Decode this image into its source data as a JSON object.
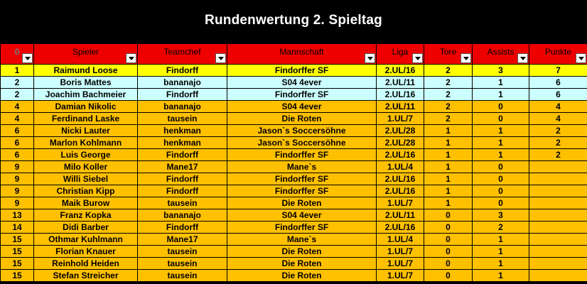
{
  "title": "Rundenwertung 2. Spieltag",
  "columns": [
    "0",
    "Spieler",
    "Teamchef",
    "Mannschaft",
    "Liga",
    "Tore",
    "Assists",
    "Punkte"
  ],
  "colors": {
    "header": "#ee0000",
    "highlight": "#ffff00",
    "cyan": "#ccffff",
    "orange": "#ffc000"
  },
  "rows": [
    {
      "rank": "1",
      "spieler": "Raimund Loose",
      "teamchef": "Findorff",
      "mannschaft": "Findorffer SF",
      "liga": "2.UL/16",
      "tore": "2",
      "assists": "3",
      "punkte": "7",
      "style": "first"
    },
    {
      "rank": "2",
      "spieler": "Boris Mattes",
      "teamchef": "bananajo",
      "mannschaft": "S04 4ever",
      "liga": "2.UL/11",
      "tore": "2",
      "assists": "1",
      "punkte": "6",
      "style": "cyan"
    },
    {
      "rank": "2",
      "spieler": "Joachim Bachmeier",
      "teamchef": "Findorff",
      "mannschaft": "Findorffer SF",
      "liga": "2.UL/16",
      "tore": "2",
      "assists": "1",
      "punkte": "6",
      "style": "cyan"
    },
    {
      "rank": "4",
      "spieler": "Damian Nikolic",
      "teamchef": "bananajo",
      "mannschaft": "S04 4ever",
      "liga": "2.UL/11",
      "tore": "2",
      "assists": "0",
      "punkte": "4",
      "style": "orange"
    },
    {
      "rank": "4",
      "spieler": "Ferdinand Laske",
      "teamchef": "tausein",
      "mannschaft": "Die Roten",
      "liga": "1.UL/7",
      "tore": "2",
      "assists": "0",
      "punkte": "4",
      "style": "orange"
    },
    {
      "rank": "6",
      "spieler": "Nicki Lauter",
      "teamchef": "henkman",
      "mannschaft": "Jason`s Soccersöhne",
      "liga": "2.UL/28",
      "tore": "1",
      "assists": "1",
      "punkte": "2",
      "style": "orange"
    },
    {
      "rank": "6",
      "spieler": "Marlon Kohlmann",
      "teamchef": "henkman",
      "mannschaft": "Jason`s Soccersöhne",
      "liga": "2.UL/28",
      "tore": "1",
      "assists": "1",
      "punkte": "2",
      "style": "orange"
    },
    {
      "rank": "6",
      "spieler": "Luis George",
      "teamchef": "Findorff",
      "mannschaft": "Findorffer SF",
      "liga": "2.UL/16",
      "tore": "1",
      "assists": "1",
      "punkte": "2",
      "style": "orange"
    },
    {
      "rank": "9",
      "spieler": "Milo Koller",
      "teamchef": "Mane17",
      "mannschaft": "Mane`s",
      "liga": "1.UL/4",
      "tore": "1",
      "assists": "0",
      "punkte": "",
      "style": "orange"
    },
    {
      "rank": "9",
      "spieler": "Willi Siebel",
      "teamchef": "Findorff",
      "mannschaft": "Findorffer SF",
      "liga": "2.UL/16",
      "tore": "1",
      "assists": "0",
      "punkte": "",
      "style": "orange"
    },
    {
      "rank": "9",
      "spieler": "Christian Kipp",
      "teamchef": "Findorff",
      "mannschaft": "Findorffer SF",
      "liga": "2.UL/16",
      "tore": "1",
      "assists": "0",
      "punkte": "",
      "style": "orange"
    },
    {
      "rank": "9",
      "spieler": "Maik Burow",
      "teamchef": "tausein",
      "mannschaft": "Die Roten",
      "liga": "1.UL/7",
      "tore": "1",
      "assists": "0",
      "punkte": "",
      "style": "orange"
    },
    {
      "rank": "13",
      "spieler": "Franz Kopka",
      "teamchef": "bananajo",
      "mannschaft": "S04 4ever",
      "liga": "2.UL/11",
      "tore": "0",
      "assists": "3",
      "punkte": "",
      "style": "orange"
    },
    {
      "rank": "14",
      "spieler": "Didi Barber",
      "teamchef": "Findorff",
      "mannschaft": "Findorffer SF",
      "liga": "2.UL/16",
      "tore": "0",
      "assists": "2",
      "punkte": "",
      "style": "orange"
    },
    {
      "rank": "15",
      "spieler": "Othmar Kuhlmann",
      "teamchef": "Mane17",
      "mannschaft": "Mane`s",
      "liga": "1.UL/4",
      "tore": "0",
      "assists": "1",
      "punkte": "",
      "style": "orange"
    },
    {
      "rank": "15",
      "spieler": "Florian Knauer",
      "teamchef": "tausein",
      "mannschaft": "Die Roten",
      "liga": "1.UL/7",
      "tore": "0",
      "assists": "1",
      "punkte": "",
      "style": "orange"
    },
    {
      "rank": "15",
      "spieler": "Reinhold Heiden",
      "teamchef": "tausein",
      "mannschaft": "Die Roten",
      "liga": "1.UL/7",
      "tore": "0",
      "assists": "1",
      "punkte": "",
      "style": "orange"
    },
    {
      "rank": "15",
      "spieler": "Stefan Streicher",
      "teamchef": "tausein",
      "mannschaft": "Die Roten",
      "liga": "1.UL/7",
      "tore": "0",
      "assists": "1",
      "punkte": "",
      "style": "orange"
    }
  ]
}
